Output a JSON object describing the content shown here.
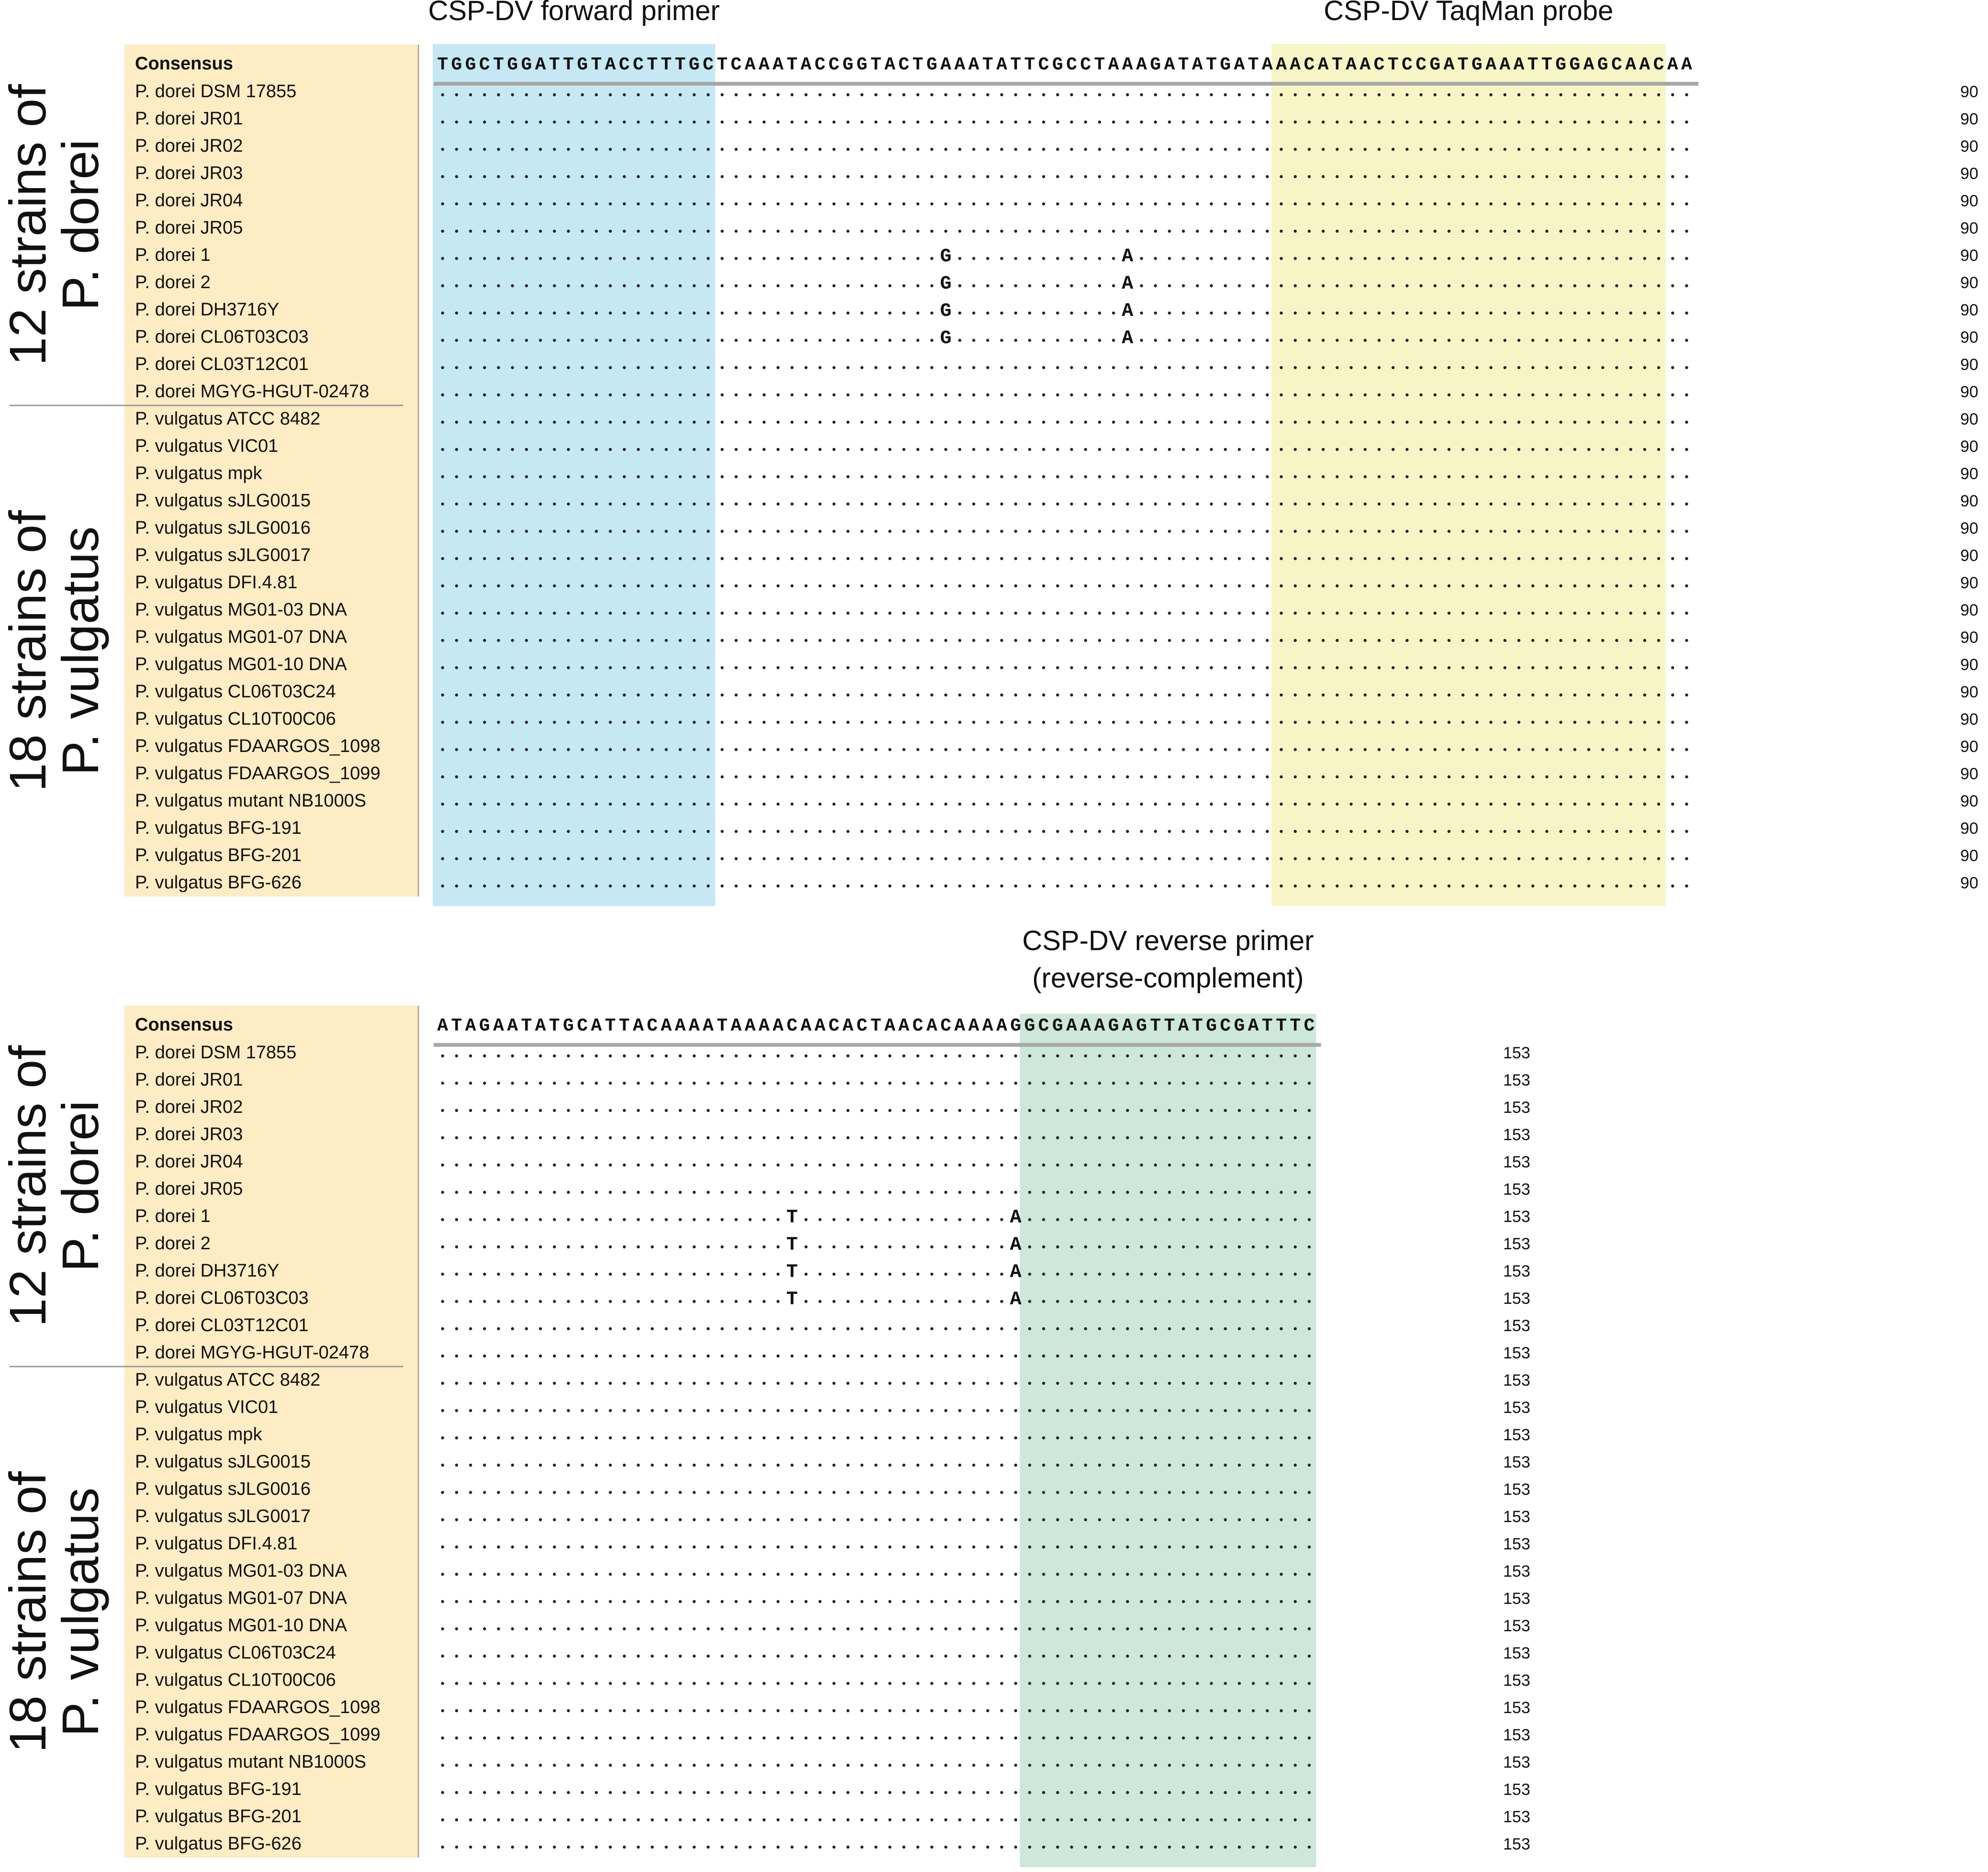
{
  "panels": [
    {
      "consensus_label": "Consensus",
      "consensus": "TGGCTGGATTGTACCTTTGCTCAAATACCGGTACTGAAATATTCGCCTAAAGATATGATAAACATAACTCCGATGAAATTGGAGCAACAA",
      "end_position": "90",
      "regions": [
        {
          "name": "forward-primer",
          "label": "CSP-DV forward primer",
          "start": 0,
          "end": 20,
          "color": "#c6e8f5"
        },
        {
          "name": "taqman-probe",
          "label": "CSP-DV TaqMan probe",
          "start": 60,
          "end": 88,
          "color": "#f7f5c6"
        }
      ],
      "group_labels": [
        "12 strains of P. dorei",
        "18 strains of P. vulgatus"
      ],
      "variants": [
        {
          "rows": [
            6,
            7,
            8,
            9
          ],
          "col": 36,
          "base": "G"
        },
        {
          "rows": [
            6,
            7,
            8,
            9
          ],
          "col": 49,
          "base": "A"
        }
      ]
    },
    {
      "consensus_label": "Consensus",
      "consensus": "ATAGAATATGCATTACAAAATAAAACAACACTAACACAAAAGGCGAAAGAGTTATGCGATTTC",
      "end_position": "153",
      "regions": [
        {
          "name": "reverse-primer",
          "label": "CSP-DV reverse primer (reverse-complement)",
          "start": 42,
          "end": 63,
          "color": "#cde8da"
        }
      ],
      "group_labels": [
        "12 strains of P. dorei",
        "18 strains of P. vulgatus"
      ],
      "variants": [
        {
          "rows": [
            6,
            7,
            8,
            9
          ],
          "col": 25,
          "base": "T"
        },
        {
          "rows": [
            6,
            7,
            8,
            9
          ],
          "col": 41,
          "base": "A"
        }
      ]
    }
  ],
  "strains": [
    "P. dorei DSM 17855",
    "P. dorei JR01",
    "P. dorei JR02",
    "P. dorei JR03",
    "P. dorei JR04",
    "P. dorei JR05",
    "P. dorei 1",
    "P. dorei 2",
    "P. dorei DH3716Y",
    "P. dorei CL06T03C03",
    "P. dorei CL03T12C01",
    "P. dorei MGYG-HGUT-02478",
    "P. vulgatus ATCC 8482",
    "P. vulgatus VIC01",
    "P. vulgatus mpk",
    "P. vulgatus sJLG0015",
    "P. vulgatus sJLG0016",
    "P. vulgatus sJLG0017",
    "P. vulgatus DFI.4.81",
    "P. vulgatus MG01-03 DNA",
    "P. vulgatus MG01-07 DNA",
    "P. vulgatus MG01-10 DNA",
    "P. vulgatus CL06T03C24",
    "P. vulgatus CL10T00C06",
    "P. vulgatus FDAARGOS_1098",
    "P. vulgatus FDAARGOS_1099",
    "P. vulgatus mutant NB1000S",
    "P. vulgatus BFG-191",
    "P. vulgatus BFG-201",
    "P. vulgatus BFG-626"
  ],
  "colors": {
    "name_column": "#fdecc4",
    "consensus_rule": "#a8a8a8",
    "text": "#111111"
  }
}
